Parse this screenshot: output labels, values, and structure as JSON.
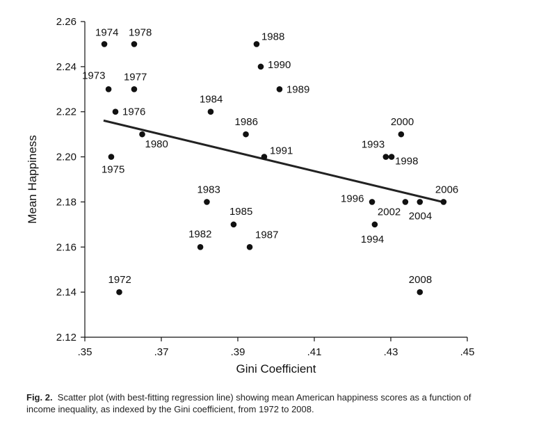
{
  "chart_data": {
    "type": "scatter",
    "xlabel": "Gini Coefficient",
    "ylabel": "Mean Happiness",
    "xlim": [
      0.35,
      0.45
    ],
    "ylim": [
      2.12,
      2.26
    ],
    "xticks": [
      ".35",
      ".37",
      ".39",
      ".41",
      ".43",
      ".45"
    ],
    "xtick_values": [
      0.35,
      0.37,
      0.39,
      0.41,
      0.43,
      0.45
    ],
    "yticks": [
      "2.12",
      "2.14",
      "2.16",
      "2.18",
      "2.20",
      "2.22",
      "2.24",
      "2.26"
    ],
    "ytick_values": [
      2.12,
      2.14,
      2.16,
      2.18,
      2.2,
      2.22,
      2.24,
      2.26
    ],
    "points": [
      {
        "label": "1972",
        "x": 0.359,
        "y": 2.14
      },
      {
        "label": "1973",
        "x": 0.3562,
        "y": 2.23
      },
      {
        "label": "1974",
        "x": 0.3551,
        "y": 2.25
      },
      {
        "label": "1975",
        "x": 0.3569,
        "y": 2.2
      },
      {
        "label": "1976",
        "x": 0.358,
        "y": 2.22
      },
      {
        "label": "1977",
        "x": 0.3629,
        "y": 2.23
      },
      {
        "label": "1978",
        "x": 0.3629,
        "y": 2.25
      },
      {
        "label": "1980",
        "x": 0.365,
        "y": 2.21
      },
      {
        "label": "1982",
        "x": 0.3802,
        "y": 2.16
      },
      {
        "label": "1983",
        "x": 0.3819,
        "y": 2.18
      },
      {
        "label": "1984",
        "x": 0.3829,
        "y": 2.22
      },
      {
        "label": "1985",
        "x": 0.3889,
        "y": 2.17
      },
      {
        "label": "1986",
        "x": 0.3921,
        "y": 2.21
      },
      {
        "label": "1987",
        "x": 0.3931,
        "y": 2.16
      },
      {
        "label": "1988",
        "x": 0.3949,
        "y": 2.25
      },
      {
        "label": "1989",
        "x": 0.4009,
        "y": 2.23
      },
      {
        "label": "1990",
        "x": 0.396,
        "y": 2.24
      },
      {
        "label": "1991",
        "x": 0.3969,
        "y": 2.2
      },
      {
        "label": "1993",
        "x": 0.4287,
        "y": 2.2
      },
      {
        "label": "1994",
        "x": 0.4258,
        "y": 2.17
      },
      {
        "label": "1996",
        "x": 0.4251,
        "y": 2.18
      },
      {
        "label": "1998",
        "x": 0.4302,
        "y": 2.2
      },
      {
        "label": "2000",
        "x": 0.4327,
        "y": 2.21
      },
      {
        "label": "2002",
        "x": 0.4338,
        "y": 2.18
      },
      {
        "label": "2004",
        "x": 0.4376,
        "y": 2.18
      },
      {
        "label": "2006",
        "x": 0.4438,
        "y": 2.18
      },
      {
        "label": "2008",
        "x": 0.4376,
        "y": 2.14
      }
    ],
    "regression_line": {
      "x": [
        0.3549,
        0.4438
      ],
      "y": [
        2.2161,
        2.1799
      ]
    },
    "grid": false,
    "point_color": "#111111"
  },
  "caption": {
    "prefix": "Fig. 2.",
    "text": "Scatter plot (with best-fitting regression line) showing mean American happiness scores as a function of income inequality, as indexed by the Gini coefficient, from 1972 to 2008."
  }
}
